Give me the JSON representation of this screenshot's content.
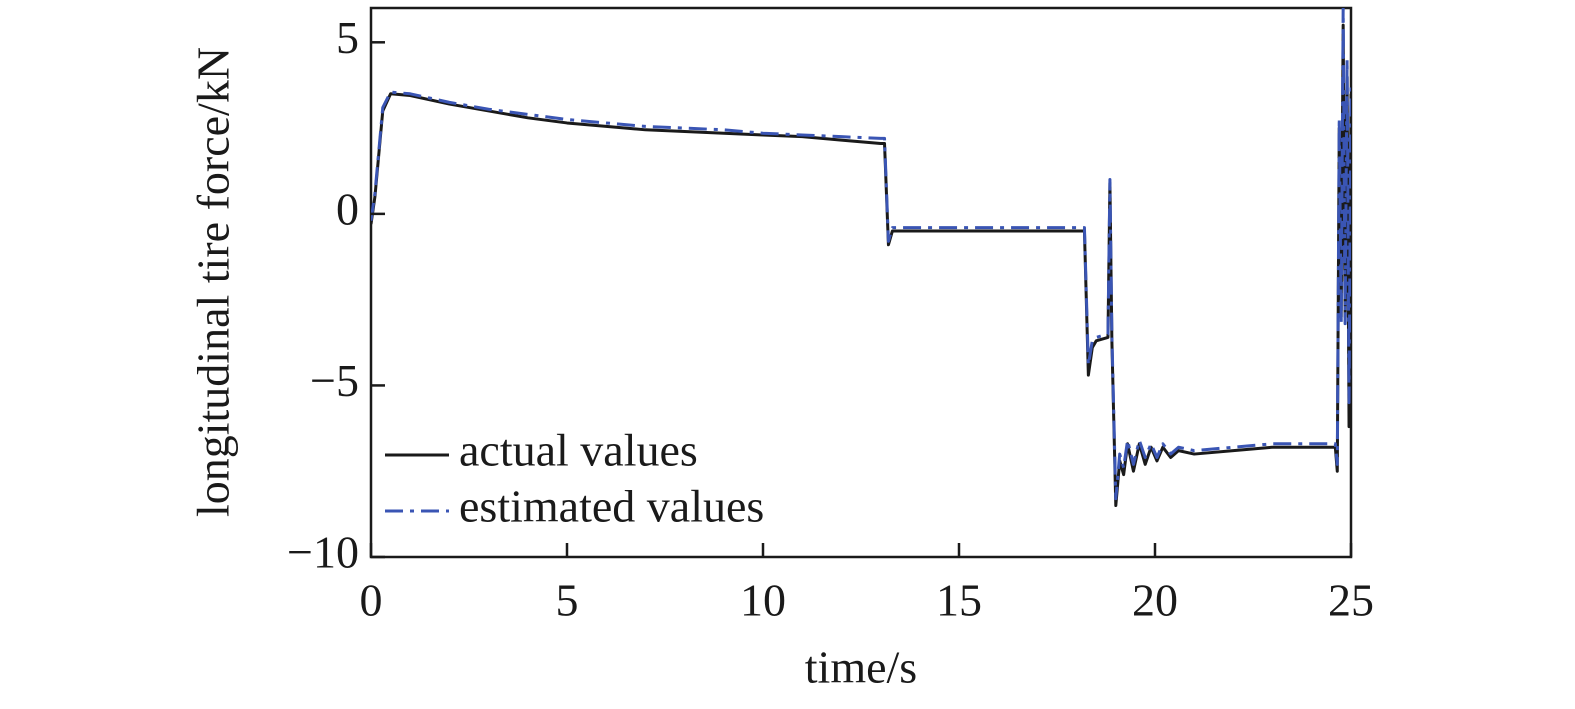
{
  "chart_data": {
    "type": "line",
    "xlabel": "time/s",
    "ylabel": "longitudinal tire force/kN",
    "x": [
      0,
      0.1,
      0.3,
      0.5,
      1,
      2,
      3,
      4,
      5,
      6,
      7,
      8,
      9,
      10,
      11,
      12,
      13,
      13.1,
      13.2,
      13.3,
      14,
      15,
      16,
      17,
      18,
      18.2,
      18.3,
      18.4,
      18.5,
      18.8,
      18.85,
      18.9,
      19,
      19.1,
      19.2,
      19.3,
      19.45,
      19.6,
      19.75,
      19.9,
      20.05,
      20.2,
      20.4,
      20.6,
      21,
      22,
      23,
      24,
      24.6,
      24.65,
      24.7,
      24.75,
      24.8,
      24.85,
      24.9,
      24.95,
      25
    ],
    "series": [
      {
        "name": "actual values",
        "color": "#1a1a1a",
        "linestyle": "solid",
        "values": [
          -0.3,
          0.5,
          3.0,
          3.5,
          3.45,
          3.2,
          3.0,
          2.8,
          2.65,
          2.55,
          2.45,
          2.4,
          2.35,
          2.3,
          2.25,
          2.15,
          2.05,
          2.05,
          -0.9,
          -0.5,
          -0.5,
          -0.5,
          -0.5,
          -0.5,
          -0.5,
          -0.5,
          -4.7,
          -3.9,
          -3.7,
          -3.6,
          0.9,
          -3.7,
          -8.5,
          -7.2,
          -7.6,
          -6.7,
          -7.5,
          -6.7,
          -7.3,
          -6.8,
          -7.2,
          -6.8,
          -7.1,
          -6.9,
          -7.0,
          -6.9,
          -6.8,
          -6.8,
          -6.8,
          -7.5,
          2.5,
          -3,
          5.5,
          -3,
          4,
          -6.2,
          3.5
        ]
      },
      {
        "name": "estimated values",
        "color": "#3a55b4",
        "linestyle": "dashdot",
        "values": [
          -0.2,
          0.6,
          3.1,
          3.55,
          3.5,
          3.25,
          3.05,
          2.9,
          2.75,
          2.65,
          2.55,
          2.5,
          2.45,
          2.35,
          2.3,
          2.25,
          2.2,
          2.2,
          -0.8,
          -0.4,
          -0.4,
          -0.4,
          -0.4,
          -0.4,
          -0.4,
          -0.4,
          -4.4,
          -3.7,
          -3.6,
          -3.5,
          1.0,
          -3.5,
          -8.3,
          -7.0,
          -7.4,
          -6.6,
          -7.3,
          -6.6,
          -7.1,
          -6.7,
          -7.1,
          -6.7,
          -7.0,
          -6.8,
          -6.9,
          -6.8,
          -6.7,
          -6.7,
          -6.7,
          -7.3,
          2.8,
          -3.2,
          6.0,
          -3.2,
          4.5,
          -5.5,
          3.8
        ]
      }
    ],
    "xlim": [
      0,
      25
    ],
    "xticks": [
      0,
      5,
      10,
      15,
      20,
      25
    ],
    "ylim": [
      -10,
      6
    ],
    "yticks": [
      {
        "value": -10,
        "label": "−10"
      },
      {
        "value": -5,
        "label": "−5"
      },
      0,
      5
    ],
    "legend": "lower left",
    "grid": false
  }
}
